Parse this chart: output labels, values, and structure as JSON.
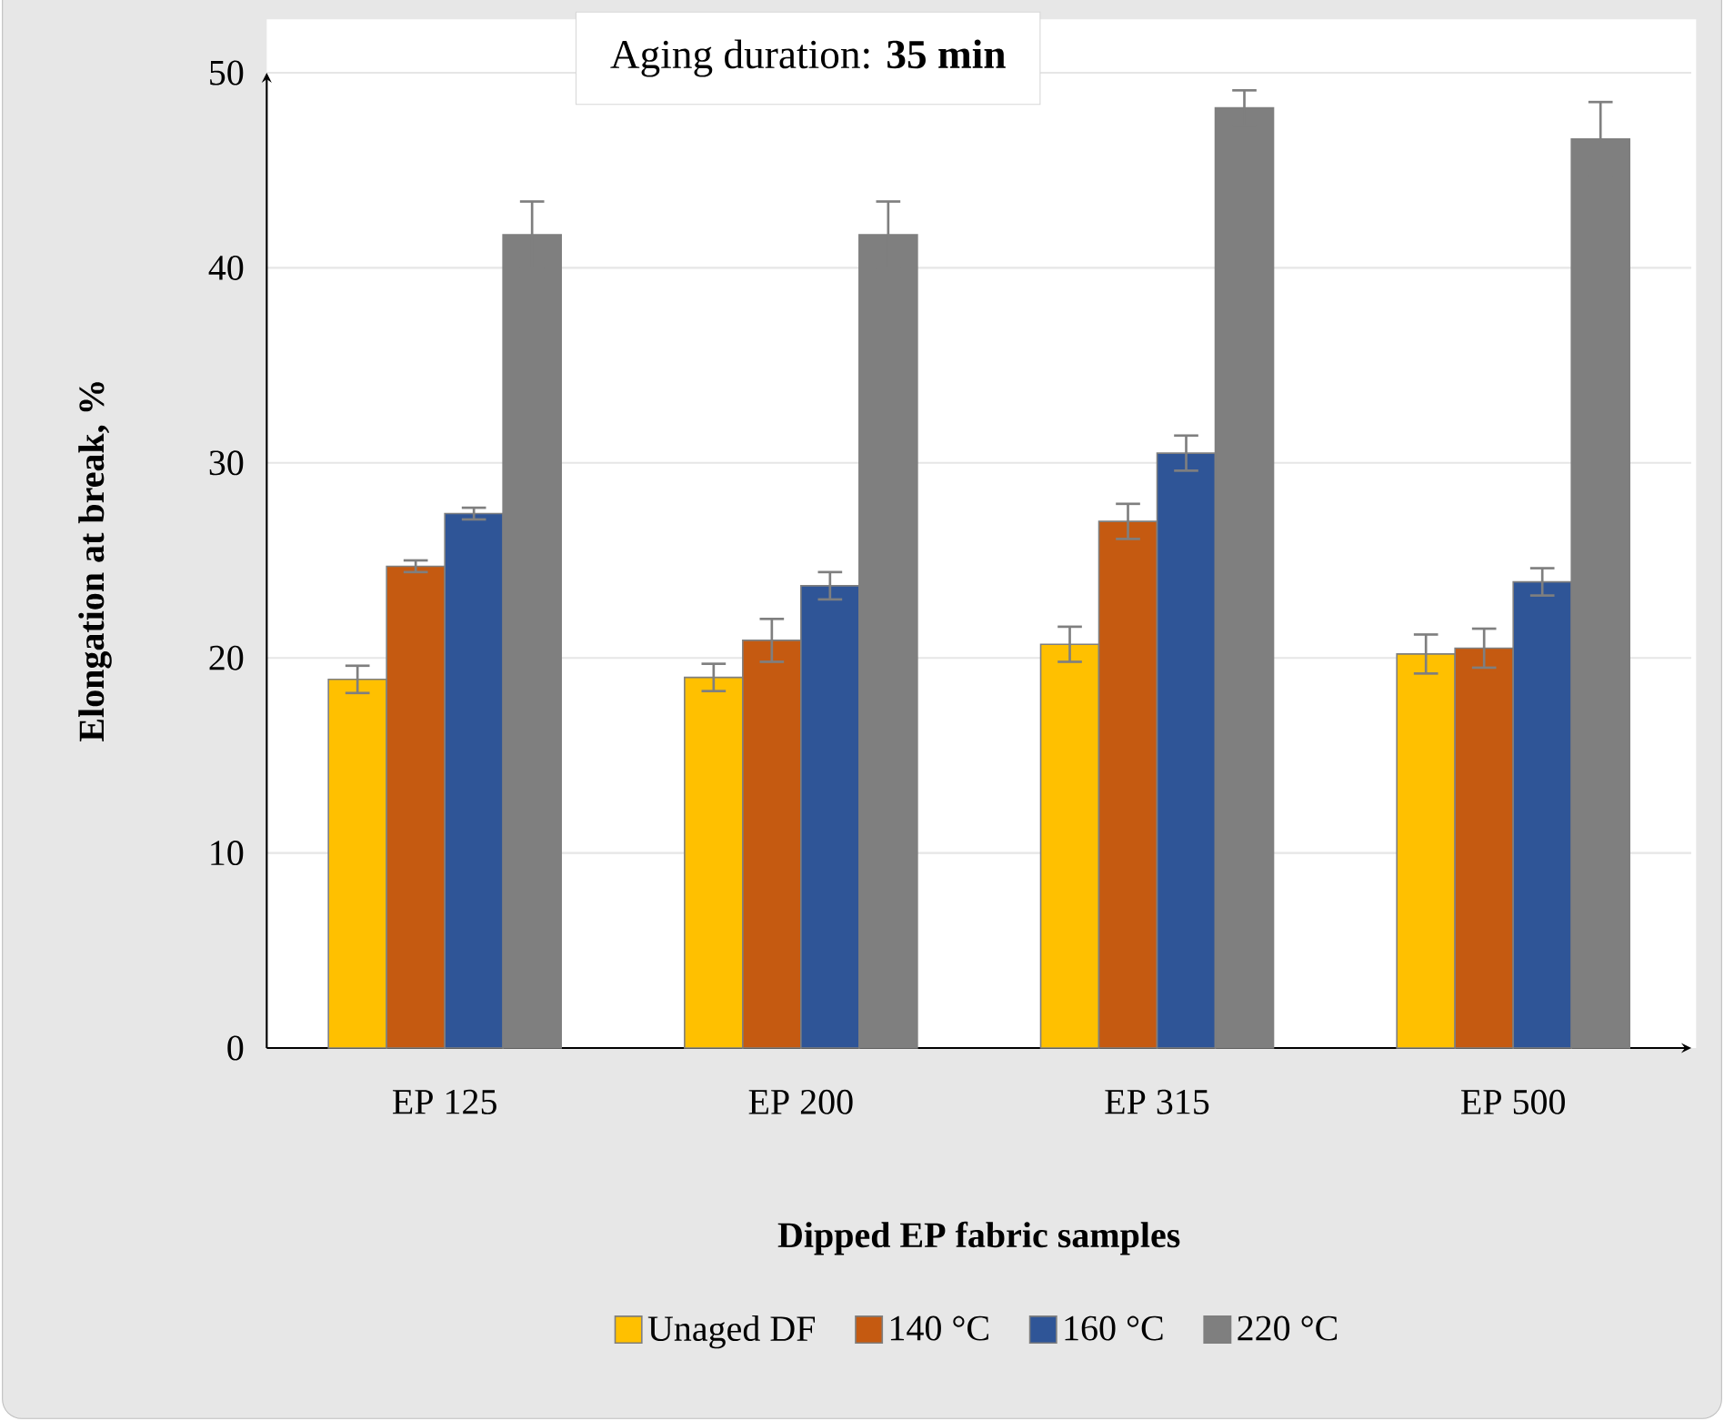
{
  "chart_data": {
    "type": "bar",
    "title": "Aging duration: **35 min**",
    "xlabel": "Dipped EP fabric samples",
    "ylabel": "Elongation at break, %",
    "categories": [
      "EP 125",
      "EP 200",
      "EP 315",
      "EP 500"
    ],
    "series": [
      {
        "name": "Unaged DF",
        "color": "#ffc000",
        "values": [
          18.9,
          19.0,
          20.7,
          20.2
        ],
        "errors": [
          0.7,
          0.7,
          0.9,
          1.0
        ]
      },
      {
        "name": "140 °C",
        "color": "#c55a11",
        "values": [
          24.7,
          20.9,
          27.0,
          20.5
        ],
        "errors": [
          0.3,
          1.1,
          0.9,
          1.0
        ]
      },
      {
        "name": "160 °C",
        "color": "#2f5597",
        "values": [
          27.4,
          23.7,
          30.5,
          23.9
        ],
        "errors": [
          0.3,
          0.7,
          0.9,
          0.7
        ]
      },
      {
        "name": "220 °C",
        "color": "#7f7f7f",
        "values": [
          41.7,
          41.7,
          48.2,
          46.6
        ],
        "errors": [
          1.7,
          1.7,
          0.9,
          1.9
        ]
      }
    ],
    "ylim": [
      0,
      50
    ],
    "yticks": [
      0,
      10,
      20,
      30,
      40,
      50
    ],
    "grid": "y",
    "legend": "bottom"
  }
}
